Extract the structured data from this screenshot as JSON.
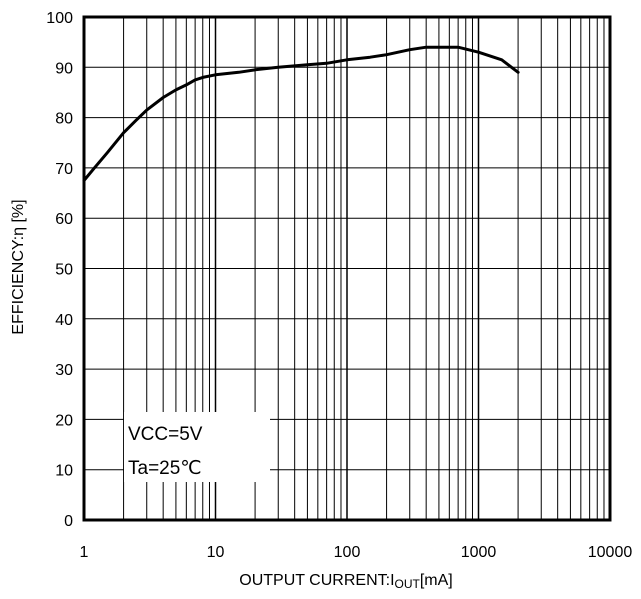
{
  "chart_data": {
    "type": "line",
    "xscale": "log",
    "xlim": [
      1,
      10000
    ],
    "ylim": [
      0,
      100
    ],
    "grid": true,
    "xlabel": "OUTPUT CURRENT:I",
    "xlabel_sub": "OUT",
    "xlabel_unit": "[mA]",
    "ylabel": "EFFICIENCY:η [%]",
    "xticks": [
      "1",
      "10",
      "100",
      "1000",
      "10000"
    ],
    "yticks": [
      "0",
      "10",
      "20",
      "30",
      "40",
      "50",
      "60",
      "70",
      "80",
      "90",
      "100"
    ],
    "annotations": [
      "VCC=5V",
      "Ta=25℃"
    ],
    "series": [
      {
        "x": [
          1,
          1.2,
          1.5,
          2,
          2.5,
          3,
          4,
          5,
          6,
          7,
          8,
          10,
          15,
          20,
          30,
          50,
          70,
          100,
          150,
          200,
          300,
          400,
          500,
          700,
          1000,
          1500,
          2000
        ],
        "y": [
          67.5,
          70,
          73,
          77,
          79.5,
          81.5,
          84,
          85.5,
          86.5,
          87.5,
          88,
          88.5,
          89,
          89.5,
          90,
          90.5,
          90.8,
          91.5,
          92,
          92.5,
          93.5,
          94,
          94,
          94,
          93,
          91.5,
          89
        ]
      }
    ]
  }
}
